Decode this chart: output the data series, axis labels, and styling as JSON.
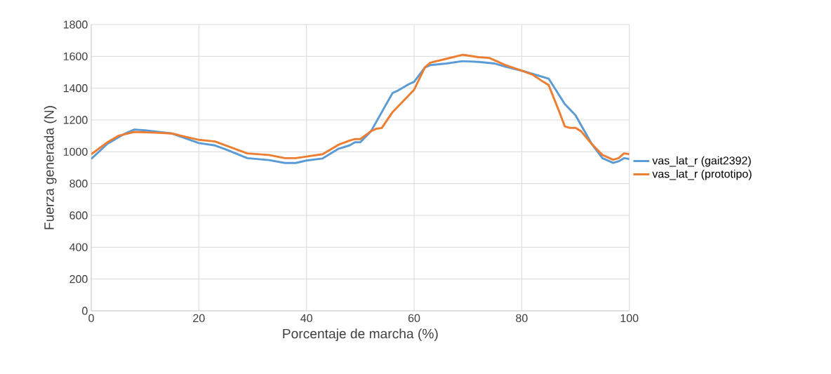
{
  "chart_data": {
    "type": "line",
    "xlabel": "Porcentaje de marcha (%)",
    "ylabel": "Fuerza generada (N)",
    "xlim": [
      0,
      100
    ],
    "xticks": [
      0,
      20,
      40,
      60,
      80,
      100
    ],
    "ylim": [
      0,
      1800
    ],
    "yticks": [
      0,
      200,
      400,
      600,
      800,
      1000,
      1200,
      1400,
      1600,
      1800
    ],
    "grid": true,
    "legend": "right",
    "marker": "none",
    "line_style": "solid",
    "series": [
      {
        "name": "vas_lat_r (gait2392)",
        "color": "#5b9bd5",
        "x": [
          0,
          3,
          6,
          8,
          10,
          15,
          20,
          23,
          25,
          29,
          33,
          36,
          38,
          40,
          43,
          46,
          48,
          49,
          50,
          52,
          54,
          56,
          57,
          59,
          60,
          62,
          63,
          66,
          69,
          72,
          75,
          77,
          80,
          83,
          85,
          88,
          90,
          93,
          95,
          97,
          98,
          99,
          100
        ],
        "values": [
          955,
          1050,
          1110,
          1140,
          1135,
          1115,
          1055,
          1040,
          1015,
          960,
          948,
          930,
          930,
          945,
          958,
          1020,
          1040,
          1060,
          1060,
          1130,
          1250,
          1370,
          1385,
          1425,
          1440,
          1530,
          1545,
          1555,
          1570,
          1565,
          1555,
          1535,
          1510,
          1480,
          1460,
          1300,
          1230,
          1050,
          960,
          930,
          940,
          960,
          955
        ]
      },
      {
        "name": "vas_lat_r (prototipo)",
        "color": "#ed7d31",
        "x": [
          0,
          3,
          5,
          8,
          12,
          15,
          20,
          23,
          25,
          29,
          33,
          36,
          38,
          40,
          43,
          46,
          48,
          49,
          50,
          52,
          53,
          54,
          56,
          58,
          60,
          62,
          63,
          66,
          69,
          72,
          74,
          77,
          80,
          82,
          84,
          85,
          87,
          88,
          89,
          90,
          91,
          93,
          95,
          97,
          98,
          99,
          100
        ],
        "values": [
          985,
          1060,
          1100,
          1125,
          1120,
          1115,
          1075,
          1065,
          1040,
          990,
          980,
          960,
          960,
          970,
          985,
          1045,
          1070,
          1080,
          1080,
          1130,
          1145,
          1150,
          1250,
          1320,
          1390,
          1530,
          1560,
          1585,
          1610,
          1595,
          1590,
          1545,
          1510,
          1485,
          1440,
          1420,
          1250,
          1160,
          1150,
          1150,
          1130,
          1050,
          980,
          950,
          960,
          990,
          985
        ]
      }
    ]
  }
}
